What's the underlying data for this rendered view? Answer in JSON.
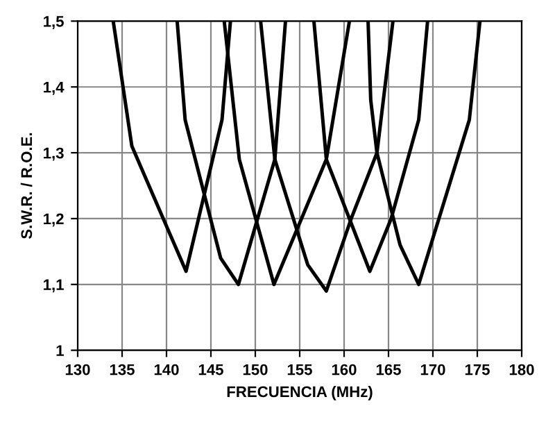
{
  "chart_data": {
    "type": "line",
    "xlabel": "FRECUENCIA (MHz)",
    "ylabel": "S.W.R. / R.O.E.",
    "xlim": [
      130,
      180
    ],
    "xticks": [
      130,
      135,
      140,
      145,
      150,
      155,
      160,
      165,
      170,
      175,
      180
    ],
    "ylim": [
      1,
      1.5
    ],
    "yticks": [
      1,
      {
        "value": 1.1,
        "label": "1,1"
      },
      {
        "value": 1.2,
        "label": "1,2"
      },
      {
        "value": 1.3,
        "label": "1,3"
      },
      {
        "value": 1.4,
        "label": "1,4"
      },
      {
        "value": 1.5,
        "label": "1,5"
      }
    ],
    "grid": true,
    "marker": "none",
    "line_style": "solid",
    "series": [
      {
        "color": "#000000",
        "x": [
          134.0,
          136.1,
          142.2,
          146.25,
          147.2
        ],
        "values": [
          1.5,
          1.31,
          1.12,
          1.35,
          1.5
        ]
      },
      {
        "color": "#000000",
        "x": [
          141.2,
          142.1,
          146.1,
          148.1,
          152.2,
          153.4
        ],
        "values": [
          1.5,
          1.35,
          1.14,
          1.1,
          1.29,
          1.5
        ]
      },
      {
        "color": "#000000",
        "x": [
          146.5,
          148.2,
          152.1,
          158.0,
          160.6
        ],
        "values": [
          1.5,
          1.29,
          1.1,
          1.29,
          1.5
        ]
      },
      {
        "color": "#000000",
        "x": [
          150.6,
          152.2,
          155.9,
          158.0,
          160.8,
          163.7,
          165.5
        ],
        "values": [
          1.5,
          1.29,
          1.13,
          1.09,
          1.2,
          1.3,
          1.5
        ]
      },
      {
        "color": "#000000",
        "x": [
          156.6,
          158.0,
          162.9,
          165.3,
          168.4,
          169.4
        ],
        "values": [
          1.5,
          1.29,
          1.12,
          1.2,
          1.35,
          1.5
        ]
      },
      {
        "color": "#000000",
        "x": [
          162.7,
          163.0,
          163.7,
          166.3,
          168.4,
          174.1,
          175.3
        ],
        "values": [
          1.5,
          1.38,
          1.3,
          1.16,
          1.1,
          1.35,
          1.5
        ]
      }
    ]
  }
}
